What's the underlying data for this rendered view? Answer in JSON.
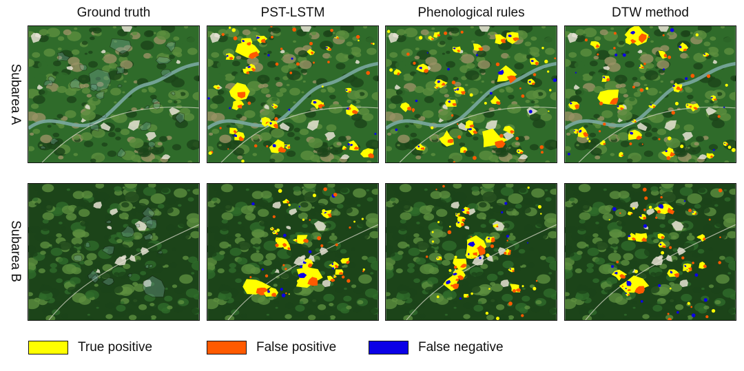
{
  "columns": [
    "Ground truth",
    "PST-LSTM",
    "Phenological rules",
    "DTW method"
  ],
  "rows": [
    "Subarea A",
    "Subarea B"
  ],
  "legend": [
    {
      "label": "True positive",
      "color": "#ffff00"
    },
    {
      "label": "False positive",
      "color": "#ff5a00"
    },
    {
      "label": "False negative",
      "color": "#0b00e6"
    }
  ],
  "colors": {
    "forest_dark": "#1c4419",
    "forest_mid": "#2f6b2a",
    "forest_light": "#5d8f3f",
    "farmland": "#9a9265",
    "bare": "#e6e2d4",
    "water": "#7aa8a0",
    "outline": "#111111",
    "true_positive": "#ffff00",
    "false_positive": "#ff5a00",
    "false_negative": "#0b00e6"
  }
}
